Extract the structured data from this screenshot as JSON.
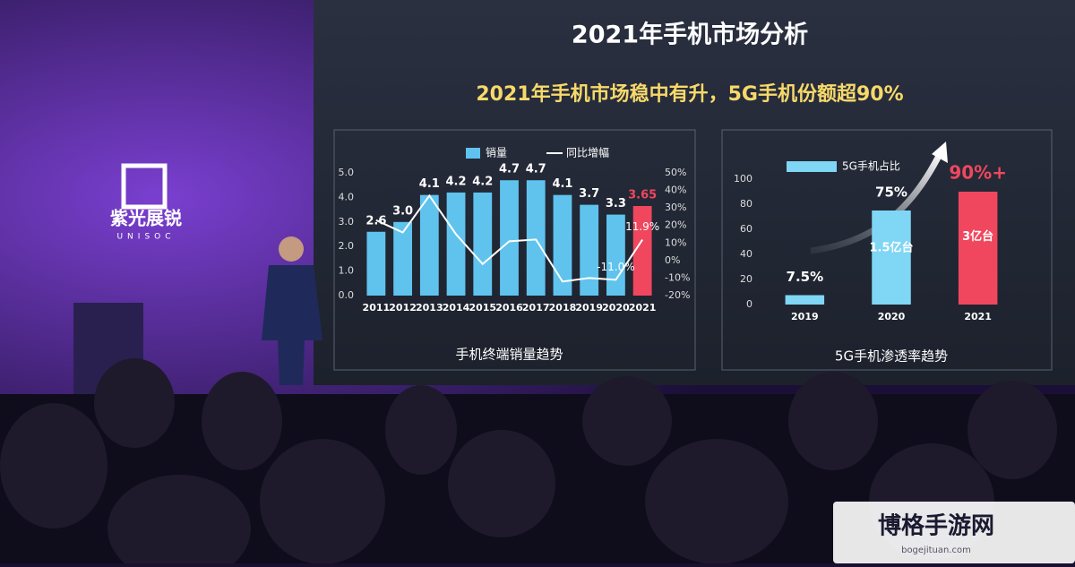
{
  "slide": {
    "title": "2021年手机市场分析",
    "subtitle": "2021年手机市场稳中有升，5G手机份额超90%"
  },
  "logo": {
    "name": "紫光展锐",
    "latin": "UNISOC"
  },
  "watermark": {
    "name": "博格手游网",
    "url": "bogejituan.com"
  },
  "chart_data": [
    {
      "type": "bar-line",
      "caption": "手机终端销量趋势",
      "categories": [
        "2011",
        "2012",
        "2013",
        "2014",
        "2015",
        "2016",
        "2017",
        "2018",
        "2019",
        "2020",
        "2021"
      ],
      "series": [
        {
          "name": "销量",
          "type": "bar",
          "colors": [
            "#5fc3ee",
            "#5fc3ee",
            "#5fc3ee",
            "#5fc3ee",
            "#5fc3ee",
            "#5fc3ee",
            "#5fc3ee",
            "#5fc3ee",
            "#5fc3ee",
            "#5fc3ee",
            "#f0475e"
          ],
          "values": [
            2.6,
            3.0,
            4.1,
            4.2,
            4.2,
            4.7,
            4.7,
            4.1,
            3.7,
            3.3,
            3.65
          ],
          "value_labels": [
            "2.6",
            "3.0",
            "4.1",
            "4.2",
            "4.2",
            "4.7",
            "4.7",
            "4.1",
            "3.7",
            "3.3",
            "3.65"
          ]
        },
        {
          "name": "同比增幅",
          "type": "line",
          "axis": "y2",
          "color": "#ffffff",
          "values": [
            23,
            16,
            37,
            15,
            -2,
            11,
            12,
            -12,
            -10,
            -11.0,
            11.9
          ],
          "value_labels": [
            null,
            null,
            null,
            null,
            null,
            null,
            null,
            null,
            null,
            "-11.0%",
            "11.9%"
          ]
        }
      ],
      "ylim": [
        0,
        5
      ],
      "yticks": [
        {
          "value": 0,
          "label": "0.0"
        },
        {
          "value": 1,
          "label": "1.0"
        },
        {
          "value": 2,
          "label": "2.0"
        },
        {
          "value": 3,
          "label": "3.0"
        },
        {
          "value": 4,
          "label": "4.0"
        },
        {
          "value": 5,
          "label": "5.0"
        }
      ],
      "y2lim": [
        -20,
        50
      ],
      "y2ticks": [
        {
          "value": -20,
          "label": "-20%"
        },
        {
          "value": -10,
          "label": "-10%"
        },
        {
          "value": 0,
          "label": "0%"
        },
        {
          "value": 10,
          "label": "10%"
        },
        {
          "value": 20,
          "label": "20%"
        },
        {
          "value": 30,
          "label": "30%"
        },
        {
          "value": 40,
          "label": "40%"
        },
        {
          "value": 50,
          "label": "50%"
        }
      ]
    },
    {
      "type": "bar",
      "caption": "5G手机渗透率趋势",
      "categories": [
        "2019",
        "2020",
        "2021"
      ],
      "series": [
        {
          "name": "5G手机占比",
          "type": "bar",
          "colors": [
            "#7fd6f5",
            "#7fd6f5",
            "#f0475e"
          ],
          "values": [
            7.5,
            75,
            90
          ],
          "value_labels": [
            "7.5%",
            "75%",
            "90%+"
          ]
        }
      ],
      "annotations": [
        null,
        "1.5亿台",
        "3亿台"
      ],
      "ylim": [
        0,
        100
      ],
      "yticks": [
        0,
        20,
        40,
        60,
        80,
        100
      ]
    }
  ]
}
